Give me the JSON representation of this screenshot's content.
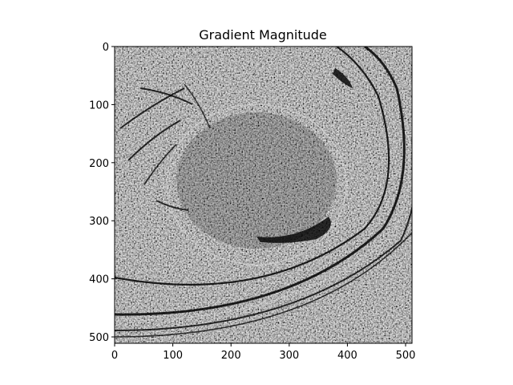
{
  "chart_data": {
    "type": "heatmap",
    "title": "Gradient Magnitude",
    "xlabel": "",
    "ylabel": "",
    "xlim": [
      0,
      511
    ],
    "ylim": [
      511,
      0
    ],
    "x_ticks": [
      0,
      100,
      200,
      300,
      400,
      500
    ],
    "y_ticks": [
      0,
      100,
      200,
      300,
      400,
      500
    ],
    "x_tick_labels": [
      "0",
      "100",
      "200",
      "300",
      "400",
      "500"
    ],
    "y_tick_labels": [
      "0",
      "100",
      "200",
      "300",
      "400",
      "500"
    ],
    "colormap": "gray",
    "grid": false,
    "legend": "none",
    "colors": {
      "low": "#000000",
      "high": "#ffffff",
      "base": "#4a4a4a"
    }
  }
}
